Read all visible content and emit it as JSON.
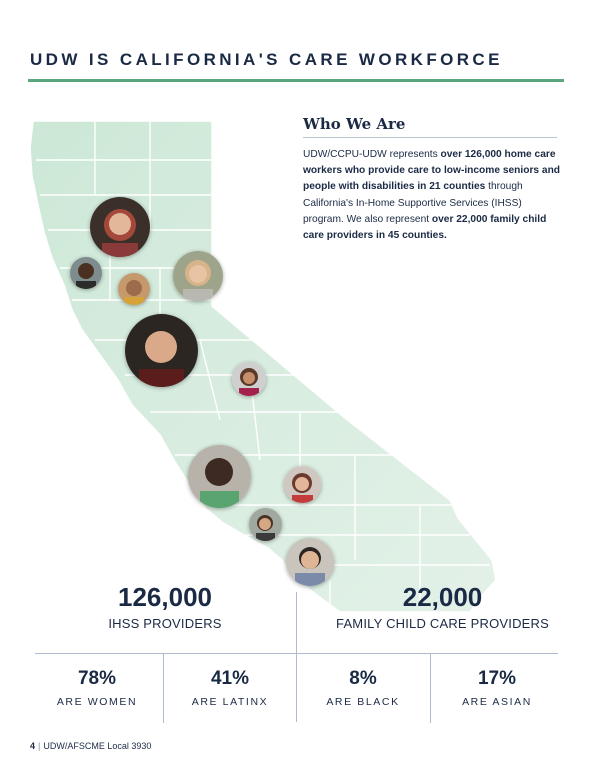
{
  "header": {
    "title": "UDW IS CALIFORNIA'S CARE WORKFORCE"
  },
  "who_we_are": {
    "heading": "Who We Are",
    "body": [
      {
        "text": "UDW/CCPU-UDW represents ",
        "bold": false
      },
      {
        "text": "over 126,000 home care workers who provide care to low-income seniors and people with disabilities in 21 counties",
        "bold": true
      },
      {
        "text": " through California's In-Home Supportive Services (IHSS) program. We also represent ",
        "bold": false
      },
      {
        "text": "over 22,000 family child care providers in 45 counties.",
        "bold": true
      }
    ]
  },
  "totals": [
    {
      "value": "126,000",
      "label": "IHSS PROVIDERS"
    },
    {
      "value": "22,000",
      "label": "FAMILY CHILD CARE  PROVIDERS"
    }
  ],
  "demographics": [
    {
      "percent": "78%",
      "label": "ARE WOMEN"
    },
    {
      "percent": "41%",
      "label": "ARE LATINX"
    },
    {
      "percent": "8%",
      "label": "ARE BLACK"
    },
    {
      "percent": "17%",
      "label": "ARE ASIAN"
    }
  ],
  "footer": {
    "page_number": "4",
    "org": "UDW/AFSCME Local 3930"
  },
  "colors": {
    "accent_green": "#5aa77f",
    "map_fill": "#d3ebdd",
    "navy": "#1b2a44"
  }
}
